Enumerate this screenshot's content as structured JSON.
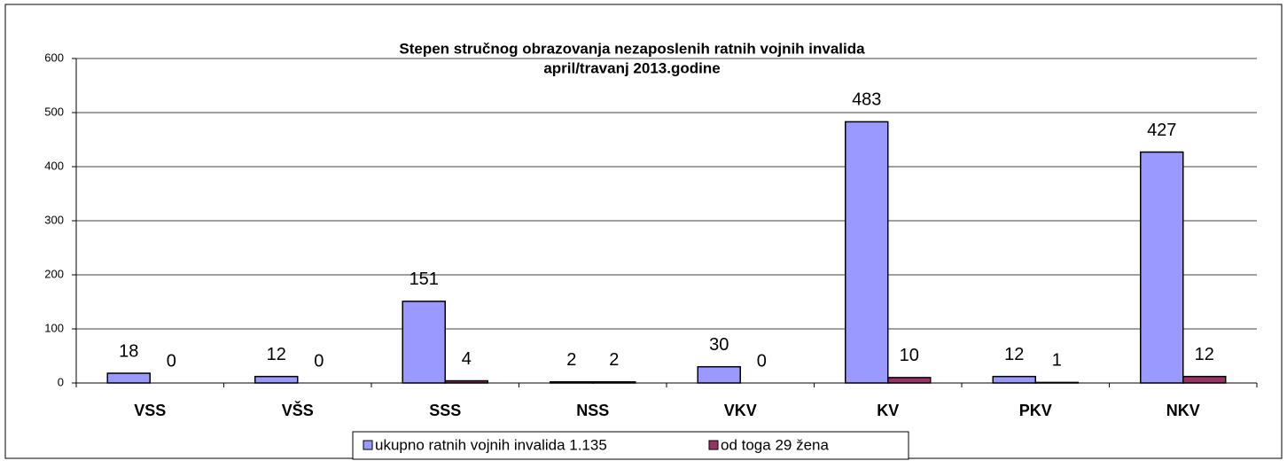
{
  "chart_data": {
    "type": "bar",
    "title": "Stepen stručnog obrazovanja nezaposlenih ratnih vojnih invalida",
    "subtitle": "april/travanj 2013.godine",
    "categories": [
      "VSS",
      "VŠS",
      "SSS",
      "NSS",
      "VKV",
      "KV",
      "PKV",
      "NKV"
    ],
    "series": [
      {
        "name": "ukupno ratnih vojnih invalida 1.135",
        "color": "#9999ff",
        "values": [
          18,
          12,
          151,
          2,
          30,
          483,
          12,
          427
        ]
      },
      {
        "name": "od toga 29 žena",
        "color": "#993366",
        "values": [
          0,
          0,
          4,
          2,
          0,
          10,
          1,
          12
        ]
      }
    ],
    "ylim": [
      0,
      600
    ],
    "yticks": [
      0,
      100,
      200,
      300,
      400,
      500,
      600
    ],
    "grid": true,
    "legend": "bottom"
  }
}
